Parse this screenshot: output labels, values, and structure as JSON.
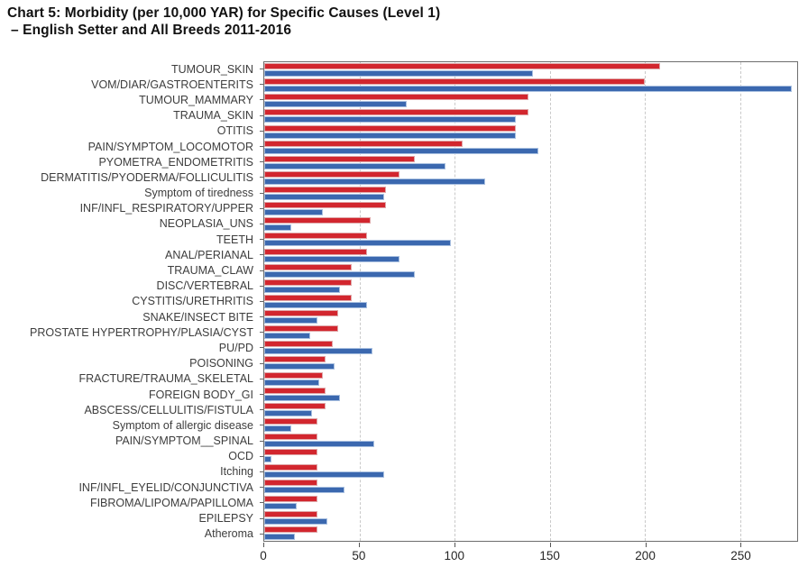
{
  "title": {
    "line1": "Chart 5: Morbidity (per 10,000 YAR) for Specific Causes (Level 1)",
    "line2": "–  English Setter and All Breeds 2011-2016"
  },
  "colors": {
    "series_red": "#d2262e",
    "series_blue": "#3b68af",
    "grid": "#c9c9c9",
    "plot_border": "#6e6e6e",
    "label_text": "#3d3d3d"
  },
  "chart_data": {
    "type": "bar",
    "orientation": "horizontal",
    "title": "Chart 5: Morbidity (per 10,000 YAR) for Specific Causes (Level 1) – English Setter and All Breeds 2011-2016",
    "xlabel": "",
    "ylabel": "",
    "grid": "vertical-dashed",
    "legend": "none",
    "xlim": [
      0,
      280
    ],
    "x_ticks": [
      0,
      50,
      100,
      150,
      200,
      250
    ],
    "categories": [
      "TUMOUR_SKIN",
      "VOM/DIAR/GASTROENTERITS",
      "TUMOUR_MAMMARY",
      "TRAUMA_SKIN",
      "OTITIS",
      "PAIN/SYMPTOM_LOCOMOTOR",
      "PYOMETRA_ENDOMETRITIS",
      "DERMATITIS/PYODERMA/FOLLICULITIS",
      "Symptom of tiredness",
      "INF/INFL_RESPIRATORY/UPPER",
      "NEOPLASIA_UNS",
      "TEETH",
      "ANAL/PERIANAL",
      "TRAUMA_CLAW",
      "DISC/VERTEBRAL",
      "CYSTITIS/URETHRITIS",
      "SNAKE/INSECT BITE",
      "PROSTATE HYPERTROPHY/PLASIA/CYST",
      "PU/PD",
      "POISONING",
      "FRACTURE/TRAUMA_SKELETAL",
      "FOREIGN BODY_GI",
      "ABSCESS/CELLULITIS/FISTULA",
      "Symptom of allergic disease",
      "PAIN/SYMPTOM__SPINAL",
      "OCD",
      "Itching",
      "INF/INFL_EYELID/CONJUNCTIVA",
      "FIBROMA/LIPOMA/PAPILLOMA",
      "EPILEPSY",
      "Atheroma"
    ],
    "series": [
      {
        "name": "English Setter",
        "color": "#d2262e",
        "values": [
          208,
          200,
          139,
          139,
          132,
          104,
          79,
          71,
          64,
          64,
          56,
          54,
          54,
          46,
          46,
          46,
          39,
          39,
          36,
          32,
          31,
          32,
          32,
          28,
          28,
          28,
          28,
          28,
          28,
          28,
          28
        ]
      },
      {
        "name": "All Breeds",
        "color": "#3b68af",
        "values": [
          141,
          277,
          75,
          132,
          132,
          144,
          95,
          116,
          63,
          31,
          14,
          98,
          71,
          79,
          40,
          54,
          28,
          24,
          57,
          37,
          29,
          40,
          25,
          14,
          58,
          4,
          63,
          42,
          17,
          33,
          16
        ]
      }
    ]
  }
}
